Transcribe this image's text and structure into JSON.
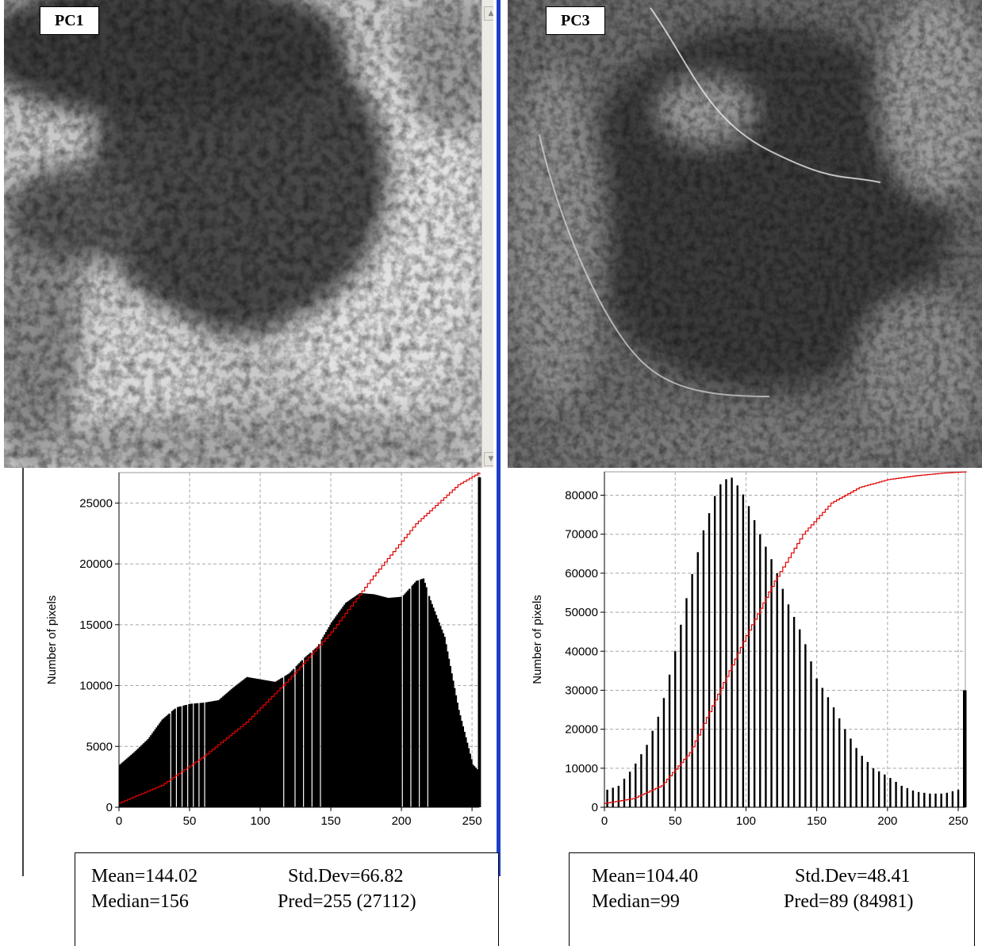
{
  "panels": [
    {
      "label": "PC1",
      "stats": {
        "mean": "Mean=144.02",
        "std": "Std.Dev=66.82",
        "median": "Median=156",
        "pred": "Pred=255 (27112)"
      }
    },
    {
      "label": "PC3",
      "stats": {
        "mean": "Mean=104.40",
        "std": "Std.Dev=48.41",
        "median": "Median=99",
        "pred": "Pred=89 (84981)"
      }
    }
  ],
  "chart_data": [
    {
      "type": "bar",
      "ylabel": "Number of pixels",
      "xlabel": "",
      "xlim": [
        0,
        255
      ],
      "ylim": [
        0,
        27500
      ],
      "xticks": [
        "0",
        "50",
        "100",
        "150",
        "200",
        "250"
      ],
      "yticks": [
        "0",
        "5000",
        "10000",
        "15000",
        "20000",
        "25000"
      ],
      "grid": true,
      "bar_color": "#000000",
      "cumulative_color": "#e00000",
      "bins_x": [
        0,
        10,
        20,
        30,
        40,
        50,
        60,
        70,
        80,
        90,
        100,
        110,
        120,
        130,
        140,
        150,
        160,
        170,
        180,
        190,
        200,
        210,
        215,
        220,
        230,
        240,
        250,
        254,
        255
      ],
      "bins_y": [
        3500,
        4500,
        5600,
        7200,
        8200,
        8500,
        8600,
        8800,
        9800,
        10700,
        10500,
        10300,
        11000,
        12200,
        13200,
        15200,
        16800,
        17600,
        17500,
        17200,
        17300,
        18600,
        18800,
        17000,
        14000,
        8000,
        3500,
        3000,
        27112
      ],
      "cumulative_x": [
        0,
        30,
        60,
        90,
        120,
        150,
        180,
        210,
        240,
        255
      ],
      "cumulative_y": [
        350,
        1800,
        4200,
        7000,
        10500,
        14400,
        19000,
        23300,
        26500,
        27500
      ]
    },
    {
      "type": "bar",
      "ylabel": "Number of pixels",
      "xlabel": "",
      "xlim": [
        0,
        255
      ],
      "ylim": [
        0,
        86000
      ],
      "xticks": [
        "0",
        "50",
        "100",
        "150",
        "200",
        "250"
      ],
      "yticks": [
        "0",
        "10000",
        "20000",
        "30000",
        "40000",
        "50000",
        "60000",
        "70000",
        "80000"
      ],
      "grid": true,
      "bar_color": "#000000",
      "cumulative_color": "#e00000",
      "bins_x": [
        2,
        10,
        20,
        30,
        40,
        50,
        60,
        70,
        80,
        85,
        90,
        95,
        100,
        110,
        120,
        130,
        140,
        150,
        160,
        170,
        180,
        190,
        200,
        210,
        220,
        230,
        240,
        250,
        254
      ],
      "bins_y": [
        4500,
        5500,
        10000,
        16000,
        25000,
        40000,
        57000,
        71000,
        82000,
        84000,
        84500,
        82000,
        79000,
        70000,
        62000,
        52000,
        44000,
        33000,
        27000,
        20000,
        14000,
        10000,
        8000,
        5500,
        4000,
        3500,
        3500,
        4500,
        30000
      ],
      "cumulative_x": [
        0,
        20,
        40,
        60,
        80,
        100,
        120,
        140,
        160,
        180,
        200,
        220,
        240,
        255
      ],
      "cumulative_y": [
        1000,
        2200,
        5500,
        14000,
        29000,
        44000,
        58000,
        70000,
        78000,
        82000,
        84000,
        85000,
        85700,
        86000
      ]
    }
  ]
}
